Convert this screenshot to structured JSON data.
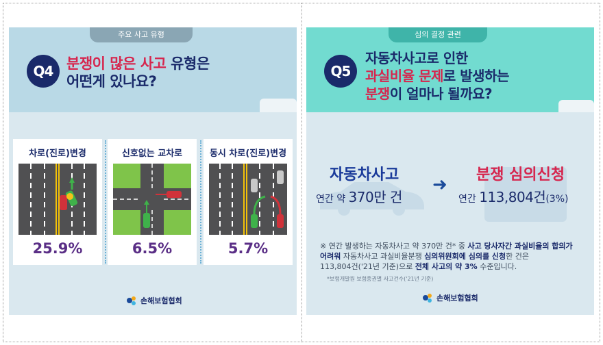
{
  "left": {
    "tag": "주요 사고 유형",
    "badge": "Q4",
    "title_red": "분쟁이 많은 사고",
    "title_rest1": " 유형은",
    "title_line2": "어떤게 있나요?",
    "cards": [
      {
        "title": "차로(진로)변경",
        "percent": "25.9%"
      },
      {
        "title": "신호없는 교차로",
        "percent": "6.5%"
      },
      {
        "title": "동시 차로(진로)변경",
        "percent": "5.7%"
      }
    ],
    "logo": "손해보험협회"
  },
  "right": {
    "tag": "심의 결정 관련",
    "badge": "Q5",
    "title_line1": "자동차사고로 인한",
    "title_red2": "과실비율 문제",
    "title_rest2": "로 발생하는",
    "title_red3": "분쟁",
    "title_rest3": "이 얼마나 될까요?",
    "left_label": "자동차사고",
    "left_pre": "연간 약 ",
    "left_num": "370만 건",
    "arrow": "➜",
    "right_label": "분쟁 심의신청",
    "right_pre": "연간 ",
    "right_num": "113,804건",
    "right_pct": "(3%)",
    "note_l1a": "※ 연간 발생하는 자동차사고 약 370만 건* 중 ",
    "note_l1b": "사고 당사자간 과실비율의 합의가",
    "note_l2a": "어려워",
    "note_l2b": " 자동차사고 과실비율분쟁 ",
    "note_l2c": "심의위원회에 심의를 신청",
    "note_l2d": "한 건은",
    "note_l3a": "113,804건('21년 기준)으로 ",
    "note_l3b": "전체 사고의 약 3%",
    "note_l3c": " 수준입니다.",
    "source": "*보험개발원 보험종권별 사고건수('21년 기준)",
    "logo": "손해보험협회"
  },
  "colors": {
    "navy": "#1a2a6a",
    "red": "#d6264e",
    "purple": "#5a2e86",
    "left_header": "#b9d9e6",
    "right_header": "#72dbd0",
    "body_bg": "#dae8ef"
  }
}
